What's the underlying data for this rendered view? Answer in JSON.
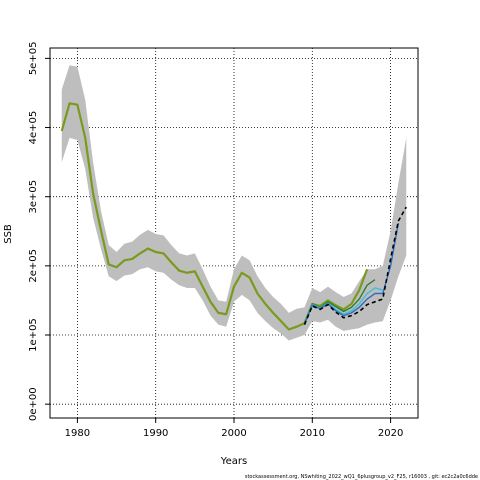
{
  "chart_data": {
    "type": "line",
    "title": "",
    "xlabel": "Years",
    "ylabel": "SSB",
    "xlim": [
      1976.5,
      2023.5
    ],
    "ylim": [
      -20000,
      515000
    ],
    "xticks": [
      1980,
      1990,
      2000,
      2010,
      2020
    ],
    "xtick_labels": [
      "1980",
      "1990",
      "2000",
      "2010",
      "2020"
    ],
    "yticks": [
      0,
      100000,
      200000,
      300000,
      400000,
      500000
    ],
    "ytick_labels": [
      "0e+00",
      "1e+05",
      "2e+05",
      "3e+05",
      "4e+05",
      "5e+05"
    ],
    "grid": true,
    "grid_style": "dotted",
    "footer": "stockassessment.org, NSwhiting_2022_wQ1_6plusgroup_v2_F25, r16003 , git: ec2c2a0c6dde",
    "colors": {
      "band": "#bebebe",
      "green_main": "#7a9a1e",
      "green_dark": "#2e7d32",
      "blue": "#2b6cc4",
      "cyan": "#40bfd0",
      "black": "#000000"
    },
    "confidence_band": {
      "x": [
        1978,
        1979,
        1980,
        1981,
        1982,
        1983,
        1984,
        1985,
        1986,
        1987,
        1988,
        1989,
        1990,
        1991,
        1992,
        1993,
        1994,
        1995,
        1996,
        1997,
        1998,
        1999,
        2000,
        2001,
        2002,
        2003,
        2004,
        2005,
        2006,
        2007,
        2008,
        2009,
        2010,
        2011,
        2012,
        2013,
        2014,
        2015,
        2016,
        2017,
        2018,
        2019,
        2020,
        2021,
        2022
      ],
      "upper": [
        455000,
        490000,
        488000,
        440000,
        350000,
        280000,
        230000,
        220000,
        232000,
        235000,
        245000,
        252000,
        246000,
        244000,
        230000,
        218000,
        215000,
        218000,
        195000,
        170000,
        150000,
        148000,
        195000,
        215000,
        208000,
        185000,
        168000,
        155000,
        145000,
        132000,
        138000,
        140000,
        168000,
        162000,
        170000,
        162000,
        155000,
        160000,
        178000,
        195000,
        195000,
        200000,
        250000,
        320000,
        385000
      ],
      "lower": [
        350000,
        385000,
        382000,
        340000,
        270000,
        225000,
        185000,
        178000,
        186000,
        188000,
        195000,
        198000,
        192000,
        190000,
        180000,
        172000,
        168000,
        168000,
        150000,
        128000,
        115000,
        112000,
        148000,
        158000,
        150000,
        132000,
        120000,
        110000,
        102000,
        92000,
        96000,
        100000,
        120000,
        118000,
        122000,
        112000,
        106000,
        108000,
        110000,
        115000,
        118000,
        120000,
        150000,
        185000,
        215000
      ]
    },
    "series": [
      {
        "color": "#7a9a1e",
        "width": 2.2,
        "dash": "none",
        "x": [
          1978,
          1979,
          1980,
          1981,
          1982,
          1983,
          1984,
          1985,
          1986,
          1987,
          1988,
          1989,
          1990,
          1991,
          1992,
          1993,
          1994,
          1995,
          1996,
          1997,
          1998,
          1999,
          2000,
          2001,
          2002,
          2003,
          2004,
          2005,
          2006,
          2007,
          2008,
          2009,
          2010,
          2011,
          2012,
          2013,
          2014,
          2015,
          2016,
          2017
        ],
        "y": [
          395000,
          435000,
          433000,
          385000,
          305000,
          252000,
          202000,
          198000,
          208000,
          210000,
          218000,
          225000,
          220000,
          218000,
          205000,
          193000,
          190000,
          192000,
          170000,
          148000,
          132000,
          130000,
          170000,
          190000,
          183000,
          160000,
          145000,
          132000,
          120000,
          108000,
          112000,
          117000,
          145000,
          142000,
          150000,
          143000,
          137000,
          145000,
          165000,
          195000
        ]
      },
      {
        "color": "#2e7d32",
        "width": 1.4,
        "dash": "none",
        "x": [
          2009,
          2010,
          2011,
          2012,
          2013,
          2014,
          2015,
          2016,
          2017,
          2018
        ],
        "y": [
          117000,
          145000,
          140000,
          148000,
          141000,
          134000,
          140000,
          152000,
          172000,
          180000
        ]
      },
      {
        "color": "#40bfd0",
        "width": 1.4,
        "dash": "none",
        "x": [
          2009,
          2010,
          2011,
          2012,
          2013,
          2014,
          2015,
          2016,
          2017,
          2018,
          2019
        ],
        "y": [
          117000,
          144000,
          139000,
          146000,
          137000,
          130000,
          135000,
          145000,
          160000,
          168000,
          165000
        ]
      },
      {
        "color": "#2b6cc4",
        "width": 1.4,
        "dash": "none",
        "x": [
          2009,
          2010,
          2011,
          2012,
          2013,
          2014,
          2015,
          2016,
          2017,
          2018,
          2019,
          2020,
          2021
        ],
        "y": [
          116000,
          143000,
          138000,
          145000,
          135000,
          128000,
          132000,
          140000,
          152000,
          160000,
          160000,
          200000,
          262000
        ]
      },
      {
        "color": "#000000",
        "width": 1.6,
        "dash": "4,3",
        "x": [
          2009,
          2010,
          2011,
          2012,
          2013,
          2014,
          2015,
          2016,
          2017,
          2018,
          2019,
          2020,
          2021,
          2022
        ],
        "y": [
          115000,
          142000,
          137000,
          144000,
          133000,
          125000,
          128000,
          134000,
          144000,
          148000,
          152000,
          210000,
          265000,
          285000
        ]
      }
    ]
  }
}
